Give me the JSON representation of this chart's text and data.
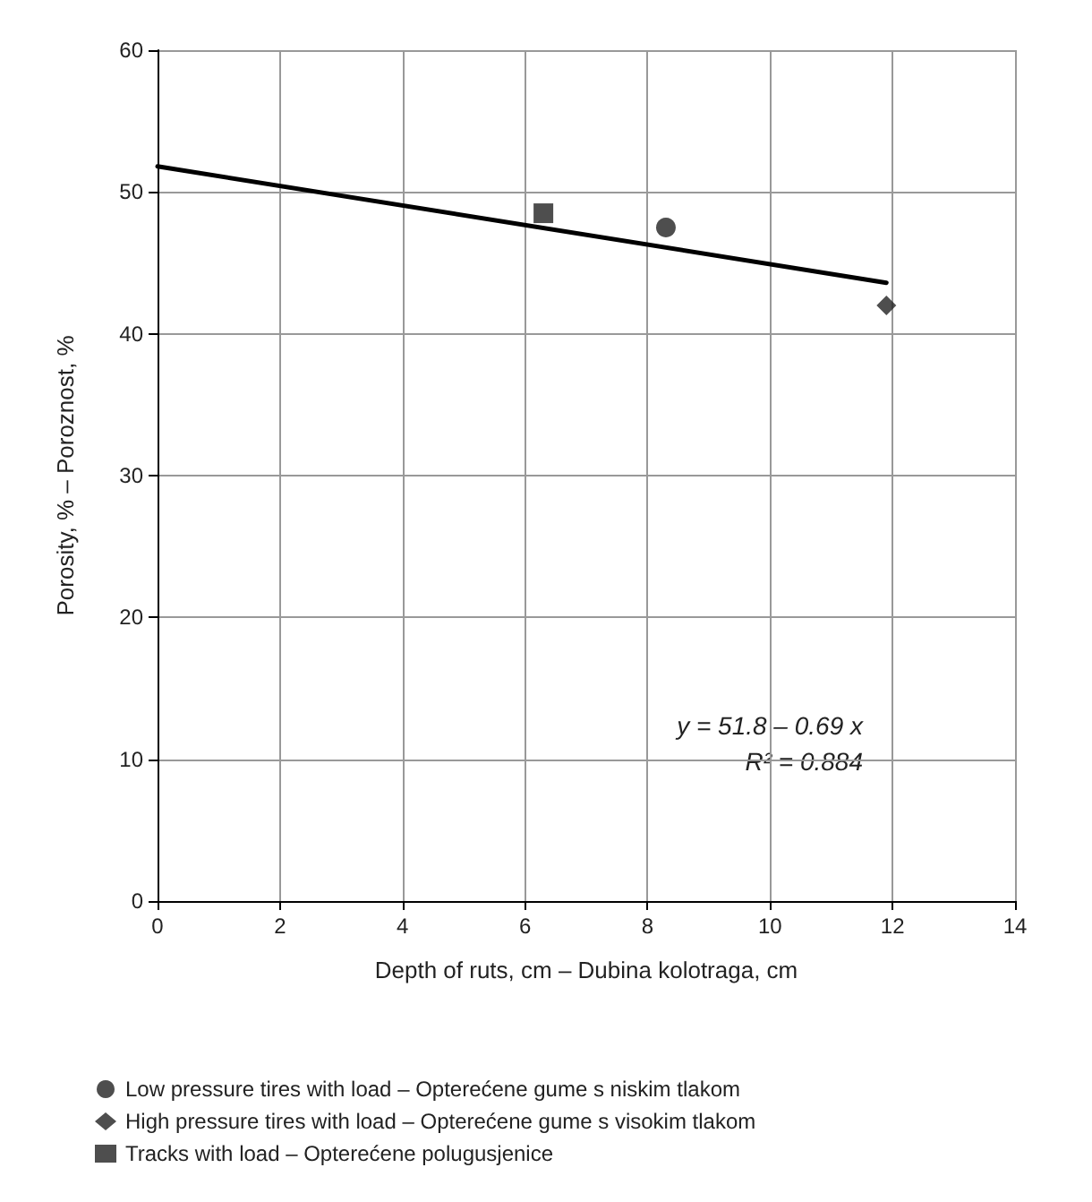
{
  "chart_data": {
    "type": "scatter",
    "xlabel": "Depth of ruts, cm – Dubina kolotraga, cm",
    "ylabel": "Porosity, % – Poroznost, %",
    "xlim": [
      0,
      14
    ],
    "xticks": [
      0,
      2,
      4,
      6,
      8,
      10,
      12,
      14
    ],
    "ylim": [
      0,
      60
    ],
    "yticks": [
      0,
      10,
      20,
      30,
      40,
      50,
      60
    ],
    "grid": true,
    "legend": "bottom",
    "series": [
      {
        "name": "Low pressure tires with load – Opterećene gume s niskim tlakom",
        "color": "#222222",
        "marker": "circle",
        "x": [
          8.3
        ],
        "values": [
          47.5
        ]
      },
      {
        "name": "High pressure tires with load – Opterećene gume s visokim tlakom",
        "color": "#222222",
        "marker": "diamond",
        "x": [
          11.9
        ],
        "values": [
          42
        ]
      },
      {
        "name": "Tracks with load – Opterećene polugusjenice",
        "color": "#222222",
        "marker": "square",
        "x": [
          6.3
        ],
        "values": [
          48.5
        ]
      },
      {
        "type": "line",
        "color": "#000000",
        "marker": "none",
        "x": [
          0,
          11.9
        ],
        "values": [
          51.8,
          43.6
        ]
      }
    ],
    "annotations": [
      "y = 51.8 – 0.69 x",
      "R² = 0.884"
    ]
  }
}
